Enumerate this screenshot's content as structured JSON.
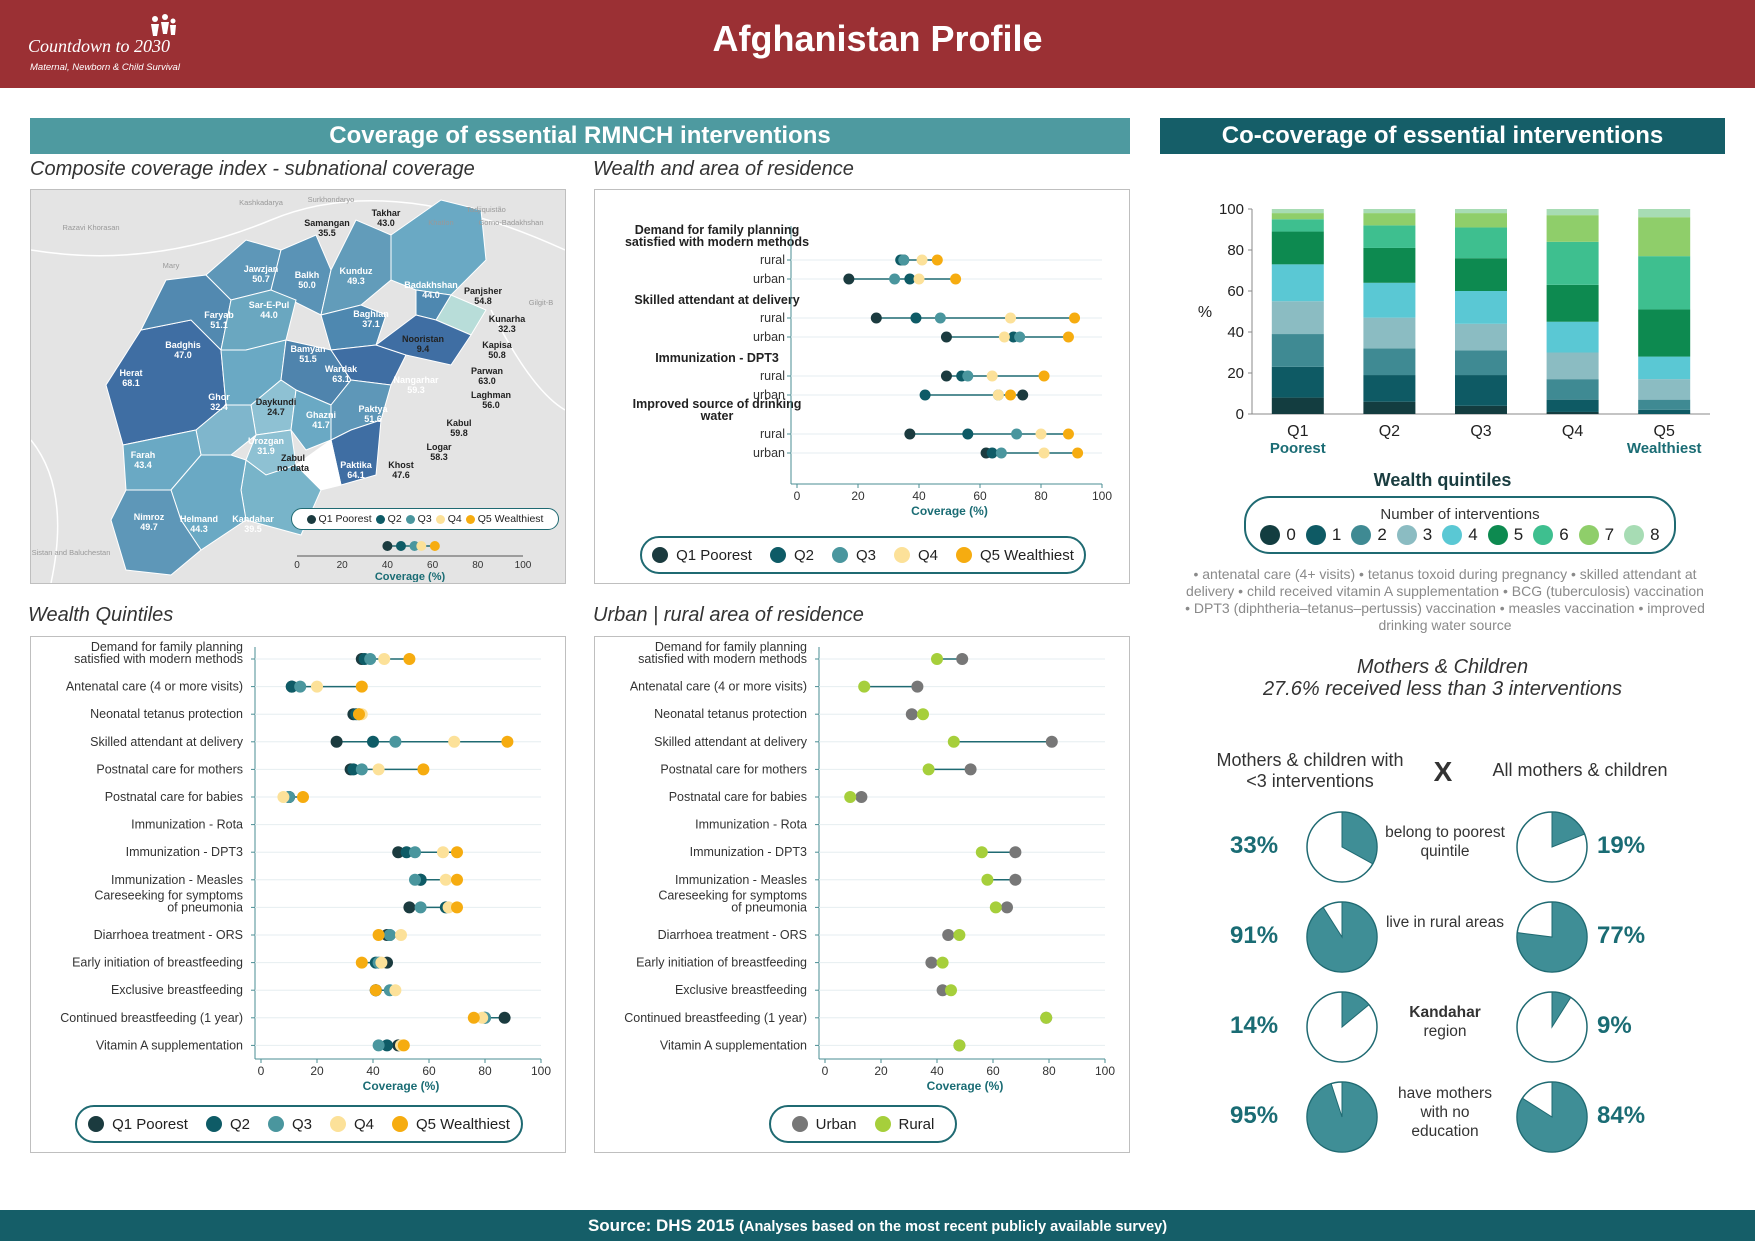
{
  "header": {
    "title": "Afghanistan Profile",
    "logo_title": "Countdown to 2030",
    "logo_subtitle": "Maternal, Newborn & Child Survival"
  },
  "sections": {
    "coverage_banner": "Coverage of essential RMNCH interventions",
    "cocoverage_banner": "Co-coverage of essential interventions",
    "map_title": "Composite coverage index - subnational coverage",
    "wealth_area_title": "Wealth and area of residence",
    "wealth_quintiles_title": "Wealth Quintiles",
    "urban_rural_title": "Urban | rural area of residence"
  },
  "colors": {
    "Q1": "#1b3b3f",
    "Q2": "#0e5b66",
    "Q3": "#4a969e",
    "Q4": "#fce199",
    "Q5": "#f6ac10",
    "urban": "#777777",
    "rural": "#a6cf3b",
    "line": "#1f6a72"
  },
  "quintile_legend": [
    "Q1 Poorest",
    "Q2",
    "Q3",
    "Q4",
    "Q5 Wealthiest"
  ],
  "area_legend": [
    "Urban",
    "Rural"
  ],
  "xlabel": "Coverage (%)",
  "map": {
    "provinces": [
      {
        "name": "Takhar",
        "value": "43.0"
      },
      {
        "name": "Samangan",
        "value": "35.5"
      },
      {
        "name": "Jawzjan",
        "value": "50.7"
      },
      {
        "name": "Balkh",
        "value": "50.0"
      },
      {
        "name": "Kunduz",
        "value": "49.3"
      },
      {
        "name": "Badakhshan",
        "value": "44.0"
      },
      {
        "name": "Panjsher",
        "value": "54.8"
      },
      {
        "name": "Faryab",
        "value": "51.1"
      },
      {
        "name": "Sar-E-Pul",
        "value": "44.0"
      },
      {
        "name": "Baghlan",
        "value": "37.1"
      },
      {
        "name": "Kunarha",
        "value": "32.3"
      },
      {
        "name": "Badghis",
        "value": "47.0"
      },
      {
        "name": "Nooristan",
        "value": "9.4"
      },
      {
        "name": "Kapisa",
        "value": "50.8"
      },
      {
        "name": "Bamyan",
        "value": "51.5"
      },
      {
        "name": "Herat",
        "value": "68.1"
      },
      {
        "name": "Parwan",
        "value": "63.0"
      },
      {
        "name": "Wardak",
        "value": "63.1"
      },
      {
        "name": "Nangarhar",
        "value": "59.3"
      },
      {
        "name": "Laghman",
        "value": "56.0"
      },
      {
        "name": "Ghor",
        "value": "32.4"
      },
      {
        "name": "Daykundi",
        "value": "24.7"
      },
      {
        "name": "Ghazni",
        "value": "41.7"
      },
      {
        "name": "Paktya",
        "value": "51.6"
      },
      {
        "name": "Kabul",
        "value": "59.8"
      },
      {
        "name": "Logar",
        "value": "58.3"
      },
      {
        "name": "Urozgan",
        "value": "31.9"
      },
      {
        "name": "Farah",
        "value": "43.4"
      },
      {
        "name": "Zabul",
        "value": "no data"
      },
      {
        "name": "Paktika",
        "value": "64.1"
      },
      {
        "name": "Khost",
        "value": "47.6"
      },
      {
        "name": "Nimroz",
        "value": "49.7"
      },
      {
        "name": "Helmand",
        "value": "44.3"
      },
      {
        "name": "Kandahar",
        "value": "39.5"
      }
    ],
    "neighbors": [
      "Tadjiquistão",
      "Kashkadarya",
      "Surkhondaryo",
      "Gorno-Badakhshan",
      "Mary",
      "Gilgit-B",
      "Baluchistan",
      "Sistan and Baluchestan",
      "Razavi Khorasan",
      "Khatlon"
    ]
  },
  "chart_data": [
    {
      "type": "dot-range",
      "title": "Composite coverage index - subnational coverage",
      "series_names": [
        "Q1 Poorest",
        "Q2",
        "Q3",
        "Q4",
        "Q5 Wealthiest"
      ],
      "values": [
        40,
        46,
        52,
        55,
        61
      ],
      "xlim": [
        0,
        100
      ],
      "xticks": [
        0,
        20,
        40,
        60,
        80,
        100
      ],
      "xlabel": "Coverage (%)"
    },
    {
      "type": "dot-range",
      "title": "Wealth and area of residence",
      "xlim": [
        0,
        100
      ],
      "xticks": [
        0,
        20,
        40,
        60,
        80,
        100
      ],
      "xlabel": "Coverage (%)",
      "series_names": [
        "Q1 Poorest",
        "Q2",
        "Q3",
        "Q4",
        "Q5 Wealthiest"
      ],
      "groups": [
        {
          "label": "Demand for family planning satisfied with modern methods",
          "rows": [
            {
              "label": "rural",
              "values": [
                35,
                34,
                35,
                41,
                46
              ]
            },
            {
              "label": "urban",
              "values": [
                17,
                37,
                32,
                40,
                52
              ]
            }
          ]
        },
        {
          "label": "Skilled attendant at delivery",
          "rows": [
            {
              "label": "rural",
              "values": [
                26,
                39,
                47,
                70,
                91
              ]
            },
            {
              "label": "urban",
              "values": [
                49,
                71,
                73,
                68,
                89
              ]
            }
          ]
        },
        {
          "label": "Immunization - DPT3",
          "rows": [
            {
              "label": "rural",
              "values": [
                49,
                54,
                56,
                64,
                81
              ]
            },
            {
              "label": "urban",
              "values": [
                74,
                42,
                66,
                66,
                70
              ]
            }
          ]
        },
        {
          "label": "Improved source of drinking water",
          "rows": [
            {
              "label": "rural",
              "values": [
                37,
                56,
                72,
                80,
                89
              ]
            },
            {
              "label": "urban",
              "values": [
                62,
                64,
                67,
                81,
                92
              ]
            }
          ]
        }
      ]
    },
    {
      "type": "dot-range",
      "title": "Wealth Quintiles",
      "xlim": [
        0,
        100
      ],
      "xticks": [
        0,
        20,
        40,
        60,
        80,
        100
      ],
      "xlabel": "Coverage (%)",
      "series_names": [
        "Q1 Poorest",
        "Q2",
        "Q3",
        "Q4",
        "Q5 Wealthiest"
      ],
      "rows": [
        {
          "label": "Demand for family planning satisfied with modern methods",
          "values": [
            36,
            37,
            39,
            44,
            53
          ]
        },
        {
          "label": "Antenatal care (4 or more visits)",
          "values": [
            11,
            11,
            14,
            20,
            36
          ]
        },
        {
          "label": "Neonatal tetanus protection",
          "values": [
            33,
            34,
            35,
            36,
            35
          ]
        },
        {
          "label": "Skilled attendant at delivery",
          "values": [
            27,
            40,
            48,
            69,
            88
          ]
        },
        {
          "label": "Postnatal care for mothers",
          "values": [
            32,
            33,
            36,
            42,
            58
          ]
        },
        {
          "label": "Postnatal care for babies",
          "values": [
            10,
            10,
            10,
            8,
            15
          ]
        },
        {
          "label": "Immunization - Rota",
          "values": []
        },
        {
          "label": "Immunization - DPT3",
          "values": [
            49,
            52,
            55,
            65,
            70
          ]
        },
        {
          "label": "Immunization - Measles",
          "values": [
            57,
            57,
            55,
            66,
            70
          ]
        },
        {
          "label": "Careseeking for symptoms of pneumonia",
          "values": [
            53,
            66,
            57,
            67,
            70
          ]
        },
        {
          "label": "Diarrhoea treatment - ORS",
          "values": [
            45,
            46,
            46,
            50,
            42
          ]
        },
        {
          "label": "Early initiation of breastfeeding",
          "values": [
            45,
            41,
            42,
            43,
            36
          ]
        },
        {
          "label": "Exclusive breastfeeding",
          "values": [
            41,
            41,
            46,
            48,
            41
          ]
        },
        {
          "label": "Continued breastfeeding (1 year)",
          "values": [
            87,
            80,
            80,
            79,
            76
          ]
        },
        {
          "label": "Vitamin A supplementation",
          "values": [
            49,
            45,
            42,
            50,
            51
          ]
        }
      ]
    },
    {
      "type": "dot-range",
      "title": "Urban | rural area of residence",
      "xlim": [
        0,
        100
      ],
      "xticks": [
        0,
        20,
        40,
        60,
        80,
        100
      ],
      "xlabel": "Coverage (%)",
      "series_names": [
        "Urban",
        "Rural"
      ],
      "rows": [
        {
          "label": "Demand for family planning satisfied with modern methods",
          "values": [
            49,
            40
          ]
        },
        {
          "label": "Antenatal care (4 or more visits)",
          "values": [
            33,
            14
          ]
        },
        {
          "label": "Neonatal tetanus protection",
          "values": [
            31,
            35
          ]
        },
        {
          "label": "Skilled attendant at delivery",
          "values": [
            81,
            46
          ]
        },
        {
          "label": "Postnatal care for mothers",
          "values": [
            52,
            37
          ]
        },
        {
          "label": "Postnatal care for babies",
          "values": [
            13,
            9
          ]
        },
        {
          "label": "Immunization - Rota",
          "values": []
        },
        {
          "label": "Immunization - DPT3",
          "values": [
            68,
            56
          ]
        },
        {
          "label": "Immunization - Measles",
          "values": [
            68,
            58
          ]
        },
        {
          "label": "Careseeking for symptoms of pneumonia",
          "values": [
            65,
            61
          ]
        },
        {
          "label": "Diarrhoea treatment - ORS",
          "values": [
            44,
            48
          ]
        },
        {
          "label": "Early initiation of breastfeeding",
          "values": [
            38,
            42
          ]
        },
        {
          "label": "Exclusive breastfeeding",
          "values": [
            42,
            45
          ]
        },
        {
          "label": "Continued breastfeeding (1 year)",
          "values": [
            79,
            79
          ]
        },
        {
          "label": "Vitamin A supplementation",
          "values": [
            48,
            48
          ]
        }
      ]
    },
    {
      "type": "stacked-bar",
      "title": "Co-coverage of essential interventions",
      "categories": [
        "Q1",
        "Q2",
        "Q3",
        "Q4",
        "Q5"
      ],
      "category_sublabels": [
        "Poorest",
        "",
        "",
        "",
        "Wealthiest"
      ],
      "xlabel": "Wealth quintiles",
      "ylabel": "%",
      "ylim": [
        0,
        100
      ],
      "yticks": [
        0,
        20,
        40,
        60,
        80,
        100
      ],
      "legend_title": "Number of interventions",
      "series": [
        {
          "name": "0",
          "color": "#133d40",
          "values": [
            8,
            6,
            4,
            1,
            0
          ]
        },
        {
          "name": "1",
          "color": "#0e5a64",
          "values": [
            15,
            13,
            15,
            6,
            2
          ]
        },
        {
          "name": "2",
          "color": "#3f8a93",
          "values": [
            16,
            13,
            12,
            10,
            5
          ]
        },
        {
          "name": "3",
          "color": "#8bbcc2",
          "values": [
            16,
            15,
            13,
            13,
            10
          ]
        },
        {
          "name": "4",
          "color": "#5ac8d4",
          "values": [
            18,
            17,
            16,
            15,
            11
          ]
        },
        {
          "name": "5",
          "color": "#0d8a50",
          "values": [
            16,
            17,
            16,
            18,
            23
          ]
        },
        {
          "name": "6",
          "color": "#3ebf8f",
          "values": [
            6,
            11,
            15,
            21,
            26
          ]
        },
        {
          "name": "7",
          "color": "#8fce6a",
          "values": [
            3,
            6,
            7,
            13,
            19
          ]
        },
        {
          "name": "8",
          "color": "#a7dcb4",
          "values": [
            2,
            2,
            2,
            3,
            4
          ]
        }
      ]
    },
    {
      "type": "pie",
      "title": "Mothers & children with <3 interventions X All mothers & children",
      "left_header": "Mothers & children with <3 interventions",
      "separator": "X",
      "right_header": "All mothers & children",
      "rows": [
        {
          "label": "belong to poorest quintile",
          "left": 33,
          "right": 19,
          "left_text": "33%",
          "right_text": "19%",
          "bold": false
        },
        {
          "label": "live in rural areas",
          "left": 91,
          "right": 77,
          "left_text": "91%",
          "right_text": "77%",
          "bold": false
        },
        {
          "label_bold": "Kandahar",
          "label": "region",
          "left": 14,
          "right": 9,
          "left_text": "14%",
          "right_text": "9%",
          "bold": true
        },
        {
          "label": "have mothers with no education",
          "left": 95,
          "right": 84,
          "left_text": "95%",
          "right_text": "84%",
          "bold": false
        }
      ]
    }
  ],
  "cocoverage_notes": "• antenatal care (4+ visits) • tetanus toxoid during pregnancy • skilled attendant at delivery • child received vitamin A supplementation • BCG (tuberculosis) vaccination • DPT3 (diphtheria–tetanus–pertussis) vaccination • measles vaccination • improved drinking water source",
  "mothers_children": {
    "title": "Mothers & Children",
    "subtitle": "27.6% received less than 3 interventions"
  },
  "footer": {
    "source": "Source: DHS 2015",
    "note": "(Analyses based on the most recent publicly available survey)"
  }
}
